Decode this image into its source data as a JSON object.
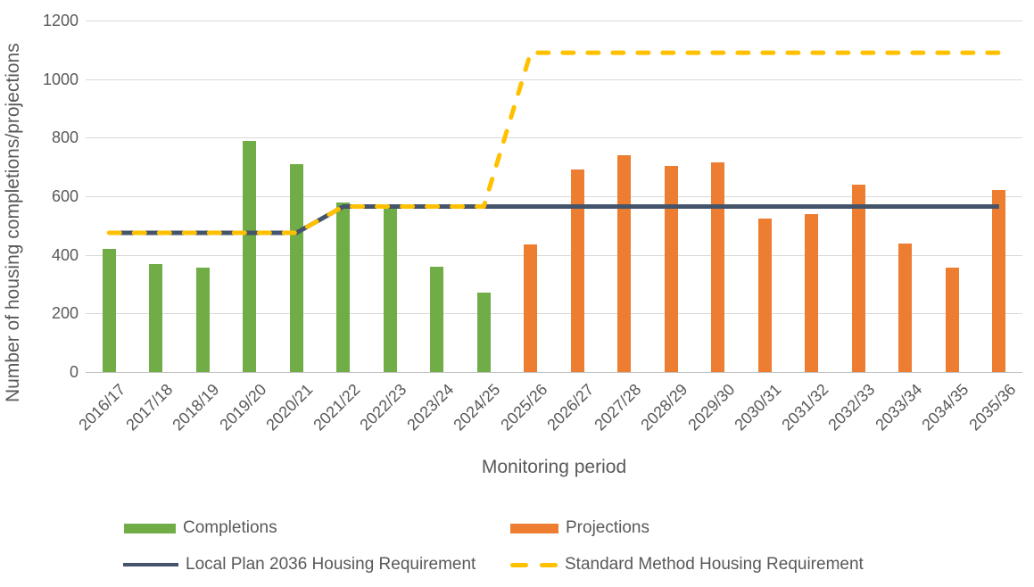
{
  "chart_data": {
    "type": "bar",
    "title": "",
    "xlabel": "Monitoring period",
    "ylabel": "Number of housing completions/projections",
    "ylim": [
      0,
      1200
    ],
    "ytick_step": 200,
    "grid": "horizontal",
    "legend_position": "bottom",
    "categories": [
      "2016/17",
      "2017/18",
      "2018/19",
      "2019/20",
      "2020/21",
      "2021/22",
      "2022/23",
      "2023/24",
      "2024/25",
      "2025/26",
      "2026/27",
      "2027/28",
      "2028/29",
      "2029/30",
      "2030/31",
      "2031/32",
      "2032/33",
      "2033/34",
      "2034/35",
      "2035/36"
    ],
    "series": [
      {
        "name": "Completions",
        "type": "bar",
        "color": "#70AD47",
        "values": [
          420,
          370,
          355,
          790,
          710,
          580,
          560,
          360,
          270,
          null,
          null,
          null,
          null,
          null,
          null,
          null,
          null,
          null,
          null,
          null
        ]
      },
      {
        "name": "Projections",
        "type": "bar",
        "color": "#ED7D31",
        "values": [
          null,
          null,
          null,
          null,
          null,
          null,
          null,
          null,
          null,
          435,
          690,
          740,
          705,
          715,
          525,
          540,
          640,
          440,
          355,
          620
        ]
      },
      {
        "name": "Local Plan 2036 Housing Requirement",
        "type": "line",
        "style": "solid",
        "color": "#44546A",
        "values": [
          475,
          475,
          475,
          475,
          475,
          565,
          565,
          565,
          565,
          565,
          565,
          565,
          565,
          565,
          565,
          565,
          565,
          565,
          565,
          565
        ]
      },
      {
        "name": "Standard Method Housing Requirement",
        "type": "line",
        "style": "dashed",
        "color": "#FFC000",
        "values": [
          475,
          475,
          475,
          475,
          475,
          565,
          565,
          565,
          565,
          1090,
          1090,
          1090,
          1090,
          1090,
          1090,
          1090,
          1090,
          1090,
          1090,
          1090
        ]
      }
    ],
    "colors": {
      "gridline": "#D9D9D9",
      "axis_line": "#BFBFBF",
      "text": "#595959"
    }
  }
}
